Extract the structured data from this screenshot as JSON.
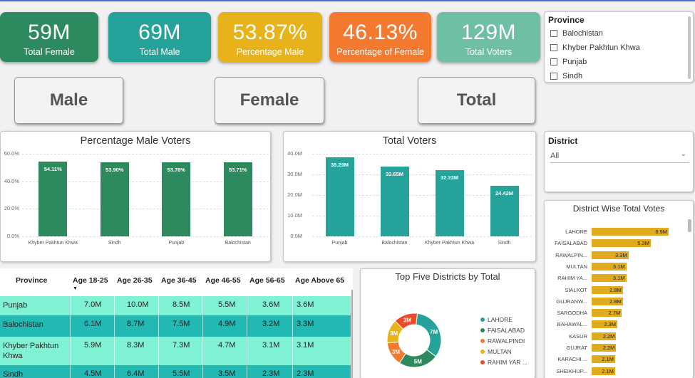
{
  "kpis": [
    {
      "value": "59M",
      "label": "Total Female",
      "color": "#2d8a5f"
    },
    {
      "value": "69M",
      "label": "Total Male",
      "color": "#25a39b"
    },
    {
      "value": "53.87%",
      "label": "Percentage Male",
      "color": "#e8b21a"
    },
    {
      "value": "46.13%",
      "label": "Percentage of Female",
      "color": "#f47a30"
    },
    {
      "value": "129M",
      "label": "Total Voters",
      "color": "#6fbfa7"
    }
  ],
  "buttons": {
    "male": "Male",
    "female": "Female",
    "total": "Total"
  },
  "province_slicer": {
    "title": "Province",
    "options": [
      "Balochistan",
      "Khyber Pakhtun Khwa",
      "Punjab",
      "Sindh"
    ]
  },
  "district_slicer": {
    "title": "District",
    "selected": "All"
  },
  "chart_data": [
    {
      "type": "bar",
      "title": "Percentage Male Voters",
      "categories": [
        "Khyber Pakhtun Khwa",
        "Sindh",
        "Punjab",
        "Balochistan"
      ],
      "values": [
        54.11,
        53.9,
        53.78,
        53.71
      ],
      "value_labels": [
        "54.11%",
        "53.90%",
        "53.78%",
        "53.71%"
      ],
      "yticks": [
        "60.0%",
        "40.0%",
        "20.0%",
        "0.0%"
      ],
      "ylim": [
        0,
        60
      ],
      "color": "#2d8a5f"
    },
    {
      "type": "bar",
      "title": "Total Voters",
      "categories": [
        "Punjab",
        "Balochistan",
        "Khyber Pakhtun Khwa",
        "Sindh"
      ],
      "values": [
        38.29,
        33.65,
        32.23,
        24.42
      ],
      "value_labels": [
        "38.29M",
        "33.65M",
        "32.23M",
        "24.42M"
      ],
      "yticks": [
        "40.0M",
        "30.0M",
        "20.0M",
        "10.0M",
        "0.0M"
      ],
      "ylim": [
        0,
        40
      ],
      "color": "#25a39b"
    },
    {
      "type": "pie",
      "title": "Top Five Districts by Total",
      "labels": [
        "LAHORE",
        "FAISALABAD",
        "RAWALPINDI",
        "MULTAN",
        "RAHIM YAR ..."
      ],
      "values": [
        7,
        5,
        3,
        3,
        3
      ],
      "value_labels": [
        "7M",
        "5M",
        "3M",
        "3M",
        "3M"
      ],
      "colors": [
        "#25a39b",
        "#2d8a5f",
        "#f47a30",
        "#e8b21a",
        "#e84a2a"
      ]
    },
    {
      "type": "bar",
      "orientation": "horizontal",
      "title": "District Wise Total Votes",
      "categories": [
        "LAHORE",
        "FAISALABAD",
        "RAWALPIN...",
        "MULTAN",
        "RAHIM YA...",
        "SIALKOT",
        "GUJRANW...",
        "SARGODHA",
        "BAHAWAL...",
        "KASUR",
        "GUJRAT",
        "KARACHI ...",
        "SHEIKHUP..."
      ],
      "values": [
        6.9,
        5.3,
        3.3,
        3.1,
        3.1,
        2.8,
        2.8,
        2.7,
        2.3,
        2.2,
        2.2,
        2.1,
        2.1
      ],
      "value_labels": [
        "6.9M",
        "5.3M",
        "3.3M",
        "3.1M",
        "3.1M",
        "2.8M",
        "2.8M",
        "2.7M",
        "2.3M",
        "2.2M",
        "2.2M",
        "2.1M",
        "2.1M"
      ],
      "color": "#e0ab1c"
    },
    {
      "type": "table",
      "columns": [
        "Province",
        "Age 18-25",
        "Age 26-35",
        "Age 36-45",
        "Age 46-55",
        "Age 56-65",
        "Age Above 65"
      ],
      "rows": [
        [
          "Punjab",
          "7.0M",
          "10.0M",
          "8.5M",
          "5.5M",
          "3.6M",
          "3.6M"
        ],
        [
          "Balochistan",
          "6.1M",
          "8.7M",
          "7.5M",
          "4.9M",
          "3.2M",
          "3.3M"
        ],
        [
          "Khyber Pakhtun Khwa",
          "5.9M",
          "8.3M",
          "7.3M",
          "4.7M",
          "3.1M",
          "3.1M"
        ],
        [
          "Sindh",
          "4.5M",
          "6.4M",
          "5.5M",
          "3.5M",
          "2.3M",
          "2.3M"
        ]
      ],
      "row_colors": [
        "#7ff2d4",
        "#22b8b4",
        "#7ff2d4",
        "#22b8b4"
      ]
    }
  ]
}
